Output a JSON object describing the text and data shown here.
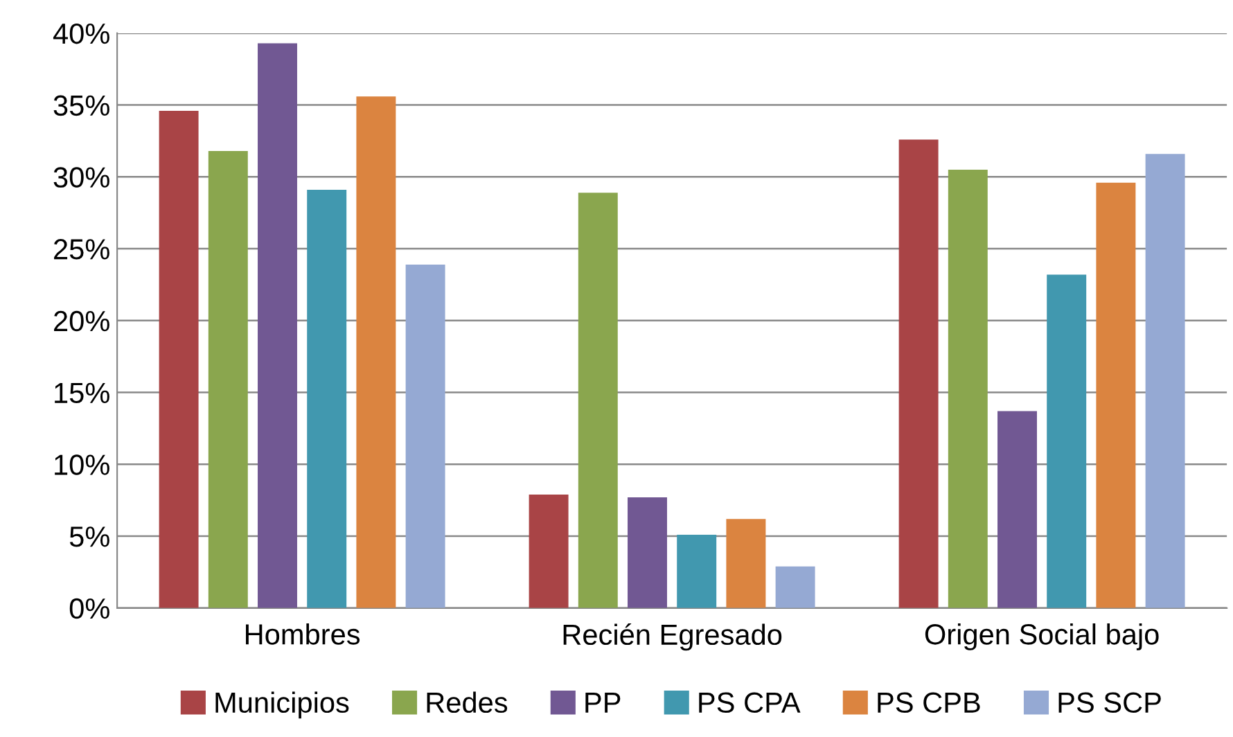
{
  "chart_data": {
    "type": "bar",
    "categories": [
      "Hombres",
      "Recién Egresado",
      "Origen Social bajo"
    ],
    "series": [
      {
        "name": "Municipios",
        "color": "#a94446",
        "values": [
          34.6,
          7.9,
          32.6
        ]
      },
      {
        "name": "Redes",
        "color": "#8aa64e",
        "values": [
          31.8,
          28.9,
          30.5
        ]
      },
      {
        "name": "PP",
        "color": "#715893",
        "values": [
          39.3,
          7.7,
          13.7
        ]
      },
      {
        "name": "PS CPA",
        "color": "#4198af",
        "values": [
          29.1,
          5.1,
          23.2
        ]
      },
      {
        "name": "PS CPB",
        "color": "#db8440",
        "values": [
          35.6,
          6.2,
          29.6
        ]
      },
      {
        "name": "PS SCP",
        "color": "#95a9d3",
        "values": [
          23.9,
          2.9,
          31.6
        ]
      }
    ],
    "ylim": [
      0,
      40
    ],
    "yticks": [
      {
        "value": 0,
        "label": "0%"
      },
      {
        "value": 5,
        "label": "5%"
      },
      {
        "value": 10,
        "label": "10%"
      },
      {
        "value": 15,
        "label": "15%"
      },
      {
        "value": 20,
        "label": "20%"
      },
      {
        "value": 25,
        "label": "25%"
      },
      {
        "value": 30,
        "label": "30%"
      },
      {
        "value": 35,
        "label": "35%"
      },
      {
        "value": 40,
        "label": "40%"
      }
    ],
    "grid": "y",
    "legend": "bottom"
  }
}
